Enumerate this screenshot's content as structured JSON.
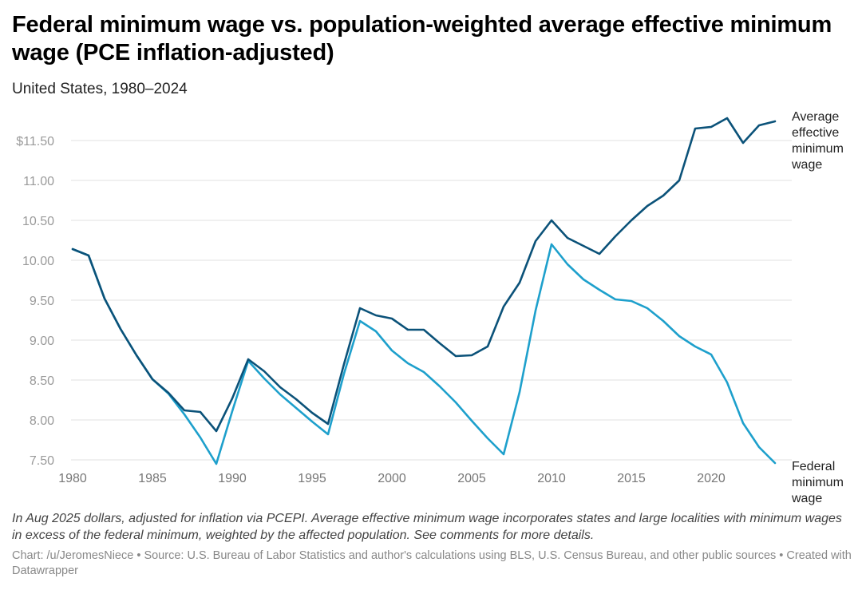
{
  "header": {
    "title": "Federal minimum wage vs. population-weighted average effective minimum wage (PCE inflation-adjusted)",
    "subtitle": "United States, 1980–2024"
  },
  "footer": {
    "notes": "In Aug 2025 dollars, adjusted for inflation via PCEPI. Average effective minimum wage incorporates states and large localities with minimum wages in excess of the federal minimum, weighted by the affected population. See comments for more details.",
    "source": "Chart: /u/JeromesNiece • Source: U.S. Bureau of Labor Statistics and author's calculations using BLS, U.S. Census Bureau, and other public sources • Created with Datawrapper"
  },
  "chart_data": {
    "type": "line",
    "title": "Federal minimum wage vs. population-weighted average effective minimum wage (PCE inflation-adjusted)",
    "subtitle": "United States, 1980–2024",
    "xlabel": "",
    "ylabel": "",
    "x": [
      1980,
      1981,
      1982,
      1983,
      1984,
      1985,
      1986,
      1987,
      1988,
      1989,
      1990,
      1991,
      1992,
      1993,
      1994,
      1995,
      1996,
      1997,
      1998,
      1999,
      2000,
      2001,
      2002,
      2003,
      2004,
      2005,
      2006,
      2007,
      2008,
      2009,
      2010,
      2011,
      2012,
      2013,
      2014,
      2015,
      2016,
      2017,
      2018,
      2019,
      2020,
      2021,
      2022,
      2023,
      2024
    ],
    "xlim": [
      1980,
      2024
    ],
    "ylim": [
      7.5,
      11.8
    ],
    "x_ticks": [
      "1980",
      "1985",
      "1990",
      "1995",
      "2000",
      "2005",
      "2010",
      "2015",
      "2020"
    ],
    "x_tick_values": [
      1980,
      1985,
      1990,
      1995,
      2000,
      2005,
      2010,
      2015,
      2020
    ],
    "y_ticks": [
      "7.50",
      "8.00",
      "8.50",
      "9.00",
      "9.50",
      "10.00",
      "10.50",
      "11.00",
      "$11.50"
    ],
    "y_tick_values": [
      7.5,
      8.0,
      8.5,
      9.0,
      9.5,
      10.0,
      10.5,
      11.0,
      11.5
    ],
    "grid": true,
    "legend": "direct labels at line ends (right)",
    "series": [
      {
        "name": "Federal minimum wage",
        "label_lines": [
          "Federal",
          "minimum",
          "wage"
        ],
        "color": "#1ea0cc",
        "values": [
          10.14,
          10.06,
          9.52,
          9.14,
          8.81,
          8.51,
          8.33,
          8.07,
          7.78,
          7.45,
          8.11,
          8.74,
          8.52,
          8.32,
          8.15,
          7.98,
          7.82,
          8.58,
          9.24,
          9.11,
          8.87,
          8.71,
          8.6,
          8.42,
          8.22,
          7.99,
          7.77,
          7.57,
          8.35,
          9.37,
          10.2,
          9.95,
          9.76,
          9.63,
          9.51,
          9.49,
          9.4,
          9.24,
          9.05,
          8.92,
          8.82,
          8.47,
          7.96,
          7.66,
          7.46
        ]
      },
      {
        "name": "Average effective minimum wage",
        "label_lines": [
          "Average",
          "effective",
          "minimum",
          "wage"
        ],
        "color": "#0b5279",
        "values": [
          10.14,
          10.06,
          9.52,
          9.14,
          8.81,
          8.51,
          8.34,
          8.12,
          8.1,
          7.86,
          8.27,
          8.76,
          8.61,
          8.41,
          8.26,
          8.09,
          7.95,
          8.7,
          9.4,
          9.31,
          9.27,
          9.13,
          9.13,
          8.96,
          8.8,
          8.81,
          8.92,
          9.42,
          9.72,
          10.24,
          10.5,
          10.28,
          10.18,
          10.08,
          10.3,
          10.5,
          10.68,
          10.81,
          11.0,
          11.65,
          11.67,
          11.78,
          11.47,
          11.69,
          11.74
        ]
      }
    ]
  }
}
